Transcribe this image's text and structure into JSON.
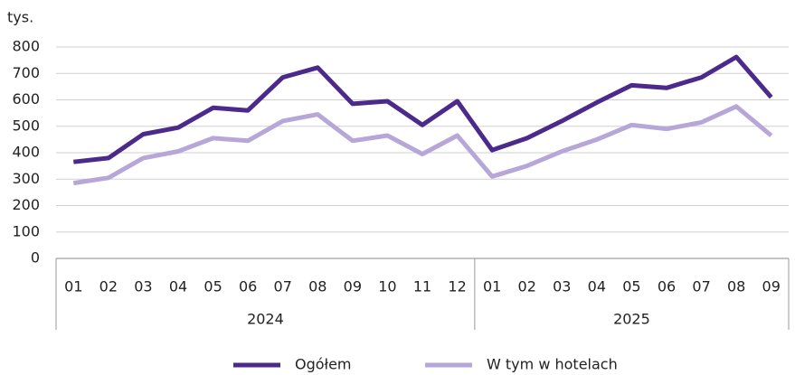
{
  "chart_data": {
    "type": "line",
    "y_label": "tys.",
    "category_groups": [
      {
        "name": "2024",
        "categories": [
          "01",
          "02",
          "03",
          "04",
          "05",
          "06",
          "07",
          "08",
          "09",
          "10",
          "11",
          "12"
        ]
      },
      {
        "name": "2025",
        "categories": [
          "01",
          "02",
          "03",
          "04",
          "05",
          "06",
          "07",
          "08",
          "09"
        ]
      }
    ],
    "series": [
      {
        "name": "Ogółem",
        "color": "#4b2a8c",
        "values": [
          365,
          380,
          470,
          495,
          570,
          560,
          685,
          722,
          585,
          595,
          505,
          595,
          410,
          455,
          520,
          590,
          655,
          645,
          685,
          762,
          610
        ]
      },
      {
        "name": "W tym w hotelach",
        "color": "#b7a7d9",
        "values": [
          285,
          305,
          380,
          405,
          455,
          445,
          520,
          545,
          445,
          465,
          395,
          465,
          310,
          350,
          405,
          450,
          505,
          490,
          515,
          575,
          465
        ]
      }
    ],
    "ylim": [
      0,
      800
    ],
    "yticks": [
      0,
      100,
      200,
      300,
      400,
      500,
      600,
      700,
      800
    ],
    "grid": true,
    "legend": "bottom"
  }
}
